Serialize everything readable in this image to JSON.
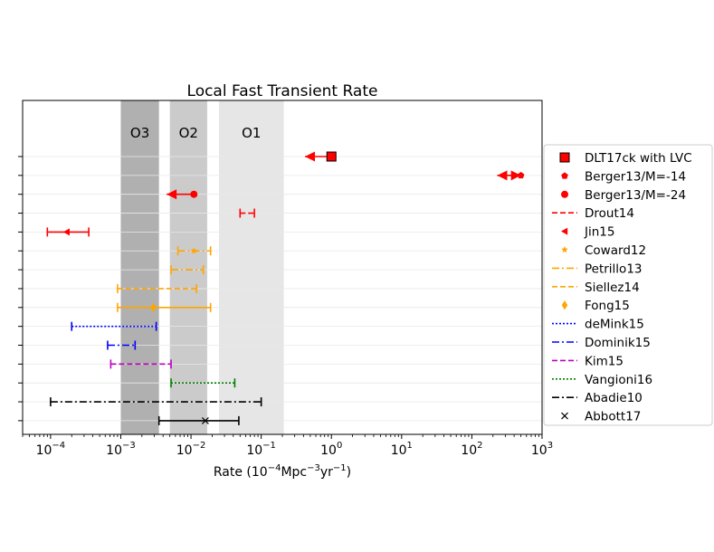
{
  "chart_data": {
    "type": "errorbar-range",
    "title": "Local Fast Transient Rate",
    "xlabel": {
      "prefix": "Rate (10",
      "exp1": "−4",
      "mid": "Mpc",
      "exp2": "−3",
      "mid2": "yr",
      "exp3": "−1",
      "suffix": ")"
    },
    "xscale": "log",
    "xlim": [
      4e-05,
      1000
    ],
    "xticks": [
      {
        "value": 0.0001,
        "base": "10",
        "exp": "−4"
      },
      {
        "value": 0.001,
        "base": "10",
        "exp": "−3"
      },
      {
        "value": 0.01,
        "base": "10",
        "exp": "−2"
      },
      {
        "value": 0.1,
        "base": "10",
        "exp": "−1"
      },
      {
        "value": 1,
        "base": "10",
        "exp": "0"
      },
      {
        "value": 10,
        "base": "10",
        "exp": "1"
      },
      {
        "value": 100,
        "base": "10",
        "exp": "2"
      },
      {
        "value": 1000,
        "base": "10",
        "exp": "3"
      }
    ],
    "bands": [
      {
        "name": "O3",
        "range": [
          0.001,
          0.0035
        ],
        "color": "#b0b0b0"
      },
      {
        "name": "O2",
        "range": [
          0.005,
          0.017
        ],
        "color": "#cbcbcb"
      },
      {
        "name": "O1",
        "range": [
          0.025,
          0.21
        ],
        "color": "#e6e6e6"
      }
    ],
    "series": [
      {
        "name": "DLT17ck with LVC",
        "color": "#ff0000",
        "linestyle": "solid",
        "marker": "square",
        "low": 0.42,
        "high": 1.12,
        "point": 1.0,
        "kind": "left-arrow-limit"
      },
      {
        "name": "Berger13/M=-14",
        "color": "#ff0000",
        "linestyle": "solid",
        "marker": "pentagon",
        "low": 230,
        "high": 500,
        "point": 500,
        "kind": "double-arrow"
      },
      {
        "name": "Berger13/M=-24",
        "color": "#ff0000",
        "linestyle": "solid",
        "marker": "circle",
        "low": 0.0045,
        "high": 0.011,
        "point": 0.011,
        "kind": "left-arrow"
      },
      {
        "name": "Drout14",
        "color": "#ff0000",
        "linestyle": "dashed",
        "marker": "none",
        "low": 0.05,
        "high": 0.08,
        "point": null,
        "kind": "capped"
      },
      {
        "name": "Jin15",
        "color": "#ff0000",
        "linestyle": "solid",
        "marker": "triangle-left",
        "low": 9e-05,
        "high": 0.00035,
        "point": 0.00017,
        "kind": "capped"
      },
      {
        "name": "Coward12",
        "color": "#ffa500",
        "linestyle": "dashdot",
        "marker": "star",
        "low": 0.0065,
        "high": 0.019,
        "point": 0.011,
        "kind": "capped"
      },
      {
        "name": "Petrillo13",
        "color": "#ffa500",
        "linestyle": "dashdot",
        "marker": "none",
        "low": 0.0052,
        "high": 0.015,
        "point": null,
        "kind": "capped"
      },
      {
        "name": "Siellez14",
        "color": "#ffa500",
        "linestyle": "dashed",
        "marker": "none",
        "low": 0.0009,
        "high": 0.012,
        "point": null,
        "kind": "capped"
      },
      {
        "name": "Fong15",
        "color": "#ffa500",
        "linestyle": "solid",
        "marker": "diamond",
        "low": 0.0009,
        "high": 0.019,
        "point": 0.0029,
        "kind": "capped"
      },
      {
        "name": "deMink15",
        "color": "#0000ff",
        "linestyle": "dotted",
        "marker": "none",
        "low": 0.0002,
        "high": 0.0032,
        "point": null,
        "kind": "capped"
      },
      {
        "name": "Dominik15",
        "color": "#0000ff",
        "linestyle": "dashdot",
        "marker": "none",
        "low": 0.00065,
        "high": 0.0016,
        "point": null,
        "kind": "capped"
      },
      {
        "name": "Kim15",
        "color": "#bf00bf",
        "linestyle": "dashed",
        "marker": "none",
        "low": 0.00072,
        "high": 0.0052,
        "point": null,
        "kind": "capped"
      },
      {
        "name": "Vangioni16",
        "color": "#008000",
        "linestyle": "dotted",
        "marker": "none",
        "low": 0.0052,
        "high": 0.042,
        "point": null,
        "kind": "capped"
      },
      {
        "name": "Abadie10",
        "color": "#000000",
        "linestyle": "dashdot",
        "marker": "none",
        "low": 0.0001,
        "high": 0.1,
        "point": null,
        "kind": "capped"
      },
      {
        "name": "Abbott17",
        "color": "#000000",
        "linestyle": "solid",
        "marker": "x",
        "low": 0.0035,
        "high": 0.048,
        "point": 0.016,
        "kind": "capped"
      }
    ]
  }
}
